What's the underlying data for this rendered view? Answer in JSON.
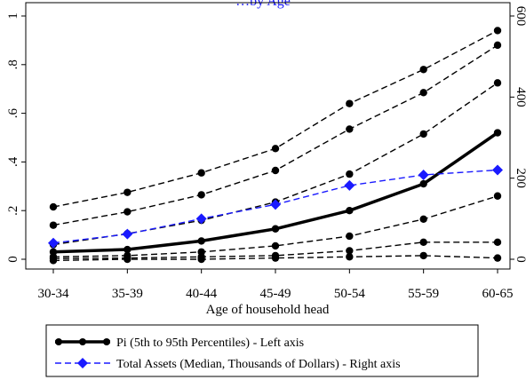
{
  "chart_data": {
    "type": "line",
    "title": "…by Age",
    "xlabel": "Age of household head",
    "categories": [
      "30-34",
      "35-39",
      "40-44",
      "45-49",
      "50-54",
      "55-59",
      "60-65"
    ],
    "left_axis": {
      "ylim": [
        0,
        1
      ],
      "ticks": [
        0,
        0.2,
        0.4,
        0.6,
        0.8,
        1
      ],
      "tick_labels": [
        "0",
        ".2",
        ".4",
        ".6",
        ".8",
        "1"
      ]
    },
    "right_axis": {
      "ylim": [
        0,
        600
      ],
      "ticks": [
        0,
        200,
        400,
        600
      ],
      "tick_labels": [
        "0",
        "200",
        "400",
        "600"
      ]
    },
    "grid": false,
    "legend_position": "bottom",
    "series": [
      {
        "name": "Pi (5th to 95th Percentiles) - Left axis",
        "axis": "left",
        "style": "solid",
        "color": "#000000",
        "role": "median",
        "values": [
          0.03,
          0.04,
          0.075,
          0.125,
          0.2,
          0.31,
          0.52
        ]
      },
      {
        "name": "",
        "axis": "left",
        "style": "dashed",
        "color": "#000000",
        "role": "percentile",
        "values": [
          0.215,
          0.275,
          0.355,
          0.455,
          0.64,
          0.78,
          0.94
        ]
      },
      {
        "name": "",
        "axis": "left",
        "style": "dashed",
        "color": "#000000",
        "role": "percentile",
        "values": [
          0.14,
          0.195,
          0.265,
          0.365,
          0.535,
          0.685,
          0.88
        ]
      },
      {
        "name": "",
        "axis": "left",
        "style": "dashed",
        "color": "#000000",
        "role": "percentile",
        "values": [
          0.06,
          0.105,
          0.16,
          0.235,
          0.35,
          0.515,
          0.725
        ]
      },
      {
        "name": "",
        "axis": "left",
        "style": "dashed",
        "color": "#000000",
        "role": "percentile",
        "values": [
          0.01,
          0.015,
          0.03,
          0.055,
          0.095,
          0.165,
          0.26
        ]
      },
      {
        "name": "",
        "axis": "left",
        "style": "dashed",
        "color": "#000000",
        "role": "percentile",
        "values": [
          0.003,
          0.005,
          0.01,
          0.015,
          0.035,
          0.07,
          0.07
        ]
      },
      {
        "name": "",
        "axis": "left",
        "style": "dashed",
        "color": "#000000",
        "role": "percentile",
        "values": [
          -0.005,
          0.0,
          0.0,
          0.005,
          0.01,
          0.015,
          0.005
        ]
      },
      {
        "name": "Total Assets (Median, Thousands of Dollars) - Right axis",
        "axis": "right",
        "style": "dashed",
        "color": "#1a1aff",
        "role": "assets",
        "marker": "diamond",
        "values": [
          40,
          62,
          100,
          135,
          182,
          208,
          220
        ]
      }
    ]
  }
}
